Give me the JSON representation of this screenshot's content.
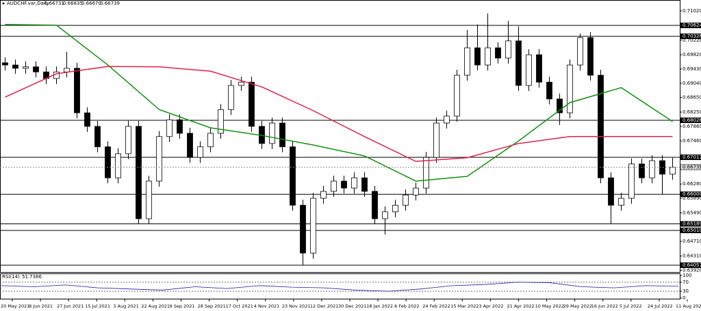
{
  "chart_data": {
    "type": "candlestick",
    "title": "AUDCHF.var,Daily",
    "quote": [
      0.66731,
      0.66835,
      {
        "value": 0.6667,
        "label": "0.66670"
      },
      0.66739
    ],
    "open": [
      0.696,
      0.6954,
      0.6945,
      0.6949,
      0.6935,
      0.6917,
      0.6935,
      0.6945,
      0.6823,
      0.6786,
      0.673,
      0.6645,
      0.6711,
      0.6786,
      0.6533,
      0.6636,
      0.6758,
      0.6804,
      0.6767,
      0.6701,
      0.673,
      0.6767,
      0.6832,
      0.6898,
      0.6907,
      0.6786,
      0.6739,
      0.6795,
      0.673,
      0.657,
      0.6439,
      0.6589,
      0.6608,
      0.6636,
      0.6617,
      0.6645,
      0.6608,
      0.6533,
      0.6552,
      0.657,
      0.6598,
      0.6617,
      0.6701,
      0.6795,
      0.6814,
      0.6926,
      0.7001,
      0.6954,
      0.7001,
      0.6973,
      0.702,
      0.6898,
      0.6982,
      0.6907,
      0.6861,
      0.6823,
      0.6954,
      0.7029,
      0.6926,
      0.6645,
      0.657,
      0.6589,
      0.6683,
      0.6645,
      0.6692,
      0.6655
    ],
    "high": [
      0.6975,
      0.6969,
      0.6964,
      0.6964,
      0.695,
      0.695,
      0.699,
      0.696,
      0.6838,
      0.6801,
      0.6745,
      0.6726,
      0.6801,
      0.6801,
      0.6651,
      0.6773,
      0.6819,
      0.6819,
      0.6782,
      0.6745,
      0.6782,
      0.6847,
      0.6913,
      0.6922,
      0.6922,
      0.6801,
      0.681,
      0.681,
      0.6745,
      0.6585,
      0.6604,
      0.6623,
      0.6651,
      0.6651,
      0.666,
      0.666,
      0.6623,
      0.6567,
      0.6585,
      0.6613,
      0.6632,
      0.6716,
      0.681,
      0.6829,
      0.6941,
      0.705,
      0.7065,
      0.7095,
      0.7016,
      0.7075,
      0.706,
      0.6997,
      0.6997,
      0.6922,
      0.6876,
      0.6969,
      0.704,
      0.7044,
      0.6941,
      0.666,
      0.6604,
      0.6698,
      0.6698,
      0.6707,
      0.6707,
      0.67
    ],
    "low": [
      0.6939,
      0.693,
      0.693,
      0.692,
      0.6902,
      0.6902,
      0.692,
      0.6808,
      0.6771,
      0.6715,
      0.663,
      0.663,
      0.6696,
      0.6518,
      0.6518,
      0.6621,
      0.6743,
      0.6752,
      0.6686,
      0.6686,
      0.6715,
      0.6752,
      0.6817,
      0.6883,
      0.6771,
      0.6724,
      0.6724,
      0.6715,
      0.6555,
      0.6406,
      0.6424,
      0.6574,
      0.6593,
      0.6602,
      0.6602,
      0.6593,
      0.6518,
      0.649,
      0.6537,
      0.6555,
      0.6583,
      0.6602,
      0.6686,
      0.678,
      0.6799,
      0.6911,
      0.6939,
      0.6939,
      0.6958,
      0.6958,
      0.6883,
      0.6883,
      0.6892,
      0.6846,
      0.679,
      0.6808,
      0.6939,
      0.6911,
      0.663,
      0.6518,
      0.6555,
      0.6574,
      0.663,
      0.663,
      0.66,
      0.664
    ],
    "close": [
      0.6954,
      0.6945,
      0.6949,
      0.6935,
      0.6917,
      0.6935,
      0.6945,
      0.6823,
      0.6786,
      0.673,
      0.6645,
      0.6711,
      0.6786,
      0.6533,
      0.6636,
      0.6758,
      0.6804,
      0.6767,
      0.6701,
      0.673,
      0.6767,
      0.6832,
      0.6898,
      0.6907,
      0.6786,
      0.6739,
      0.6795,
      0.673,
      0.657,
      0.6439,
      0.6589,
      0.6608,
      0.6636,
      0.6617,
      0.6645,
      0.6608,
      0.6533,
      0.6552,
      0.657,
      0.6598,
      0.6617,
      0.6701,
      0.6795,
      0.6814,
      0.6926,
      0.7001,
      0.6954,
      0.7001,
      0.6973,
      0.702,
      0.6898,
      0.6982,
      0.6907,
      0.6861,
      0.6823,
      0.6954,
      0.7029,
      0.6926,
      0.6645,
      0.657,
      0.6589,
      0.6683,
      0.6645,
      0.6692,
      0.6655,
      0.6674
    ],
    "up_color": "#ffffff",
    "down_color": "#000000",
    "moving_averages": [
      {
        "color": "#109010",
        "x": [
          0,
          5,
          10,
          15,
          20,
          25,
          30,
          35,
          40,
          45,
          50,
          55,
          60,
          65
        ],
        "values": [
          0.7065,
          0.7063,
          0.6954,
          0.6832,
          0.6782,
          0.6761,
          0.6735,
          0.6705,
          0.6636,
          0.6649,
          0.6746,
          0.6851,
          0.6892,
          0.6799
        ]
      },
      {
        "color": "#e0204a",
        "x": [
          0,
          5,
          10,
          15,
          20,
          25,
          30,
          35,
          40,
          45,
          50,
          55,
          60,
          65
        ],
        "values": [
          0.6866,
          0.693,
          0.695,
          0.6949,
          0.6937,
          0.6894,
          0.6829,
          0.6758,
          0.669,
          0.67,
          0.6739,
          0.6758,
          0.6758,
          0.6758
        ]
      }
    ],
    "ylim": [
      0.6387,
      0.7117
    ],
    "yticks": [
      {
        "value": 0.7102,
        "label": "0.71020"
      },
      {
        "value": 0.7022,
        "label": "0.70220"
      },
      {
        "value": 0.6982,
        "label": "0.69820"
      },
      {
        "value": 0.6943,
        "label": "0.69430"
      },
      {
        "value": 0.6904,
        "label": "0.69040"
      },
      {
        "value": 0.6865,
        "label": "0.68650"
      },
      {
        "value": 0.6825,
        "label": "0.68250"
      },
      {
        "value": 0.6786,
        "label": "0.67860"
      },
      {
        "value": 0.6746,
        "label": "0.67460"
      },
      {
        "value": 0.6628,
        "label": "0.66280"
      },
      {
        "value": 0.6589,
        "label": "0.65890"
      },
      {
        "value": 0.6549,
        "label": "0.65490"
      },
      {
        "value": 0.6471,
        "label": "0.64710"
      },
      {
        "value": 0.6431,
        "label": "0.64310"
      },
      {
        "value": 0.6392,
        "label": "0.63920"
      }
    ],
    "levels": [
      0.70624,
      0.70326,
      0.68026,
      0.67013,
      {
        "value": 0.66,
        "label": "0.66000"
      },
      0.65189,
      {
        "value": 0.6501,
        "label": "0.65010"
      },
      0.64057
    ],
    "current": 0.66739,
    "categories": [
      "20 May 2021",
      "8 Jun 2021",
      "27 Jun 2021",
      "15 Jul 2021",
      "3 Aug 2021",
      "22 Aug 2021",
      "9 Sep 2021",
      "28 Sep 2021",
      "17 Oct 2021",
      "4 Nov 2021",
      "23 Nov 2021",
      "12 Dec 2021",
      "30 Dec 2021",
      "18 Jan 2022",
      "6 Feb 2022",
      "24 Feb 2022",
      "15 Mar 2022",
      "3 Apr 2022",
      "21 Apr 2022",
      "10 May 2022",
      "29 May 2022",
      "16 Jun 2022",
      "5 Jul 2022",
      "24 Jul 2022",
      "11 Aug 2022"
    ],
    "rsi": {
      "title": "RSI(14)",
      "value": 51.7386,
      "color": "#1a1aa0",
      "ylim": [
        0,
        100
      ],
      "yticks": [
        100,
        70,
        30,
        0
      ],
      "levels": [
        70,
        30
      ],
      "values": [
        55,
        50,
        58,
        45,
        40,
        35,
        50,
        42,
        55,
        48,
        45,
        35,
        30,
        40,
        55,
        60,
        70,
        68,
        50,
        45,
        55,
        52
      ]
    }
  }
}
